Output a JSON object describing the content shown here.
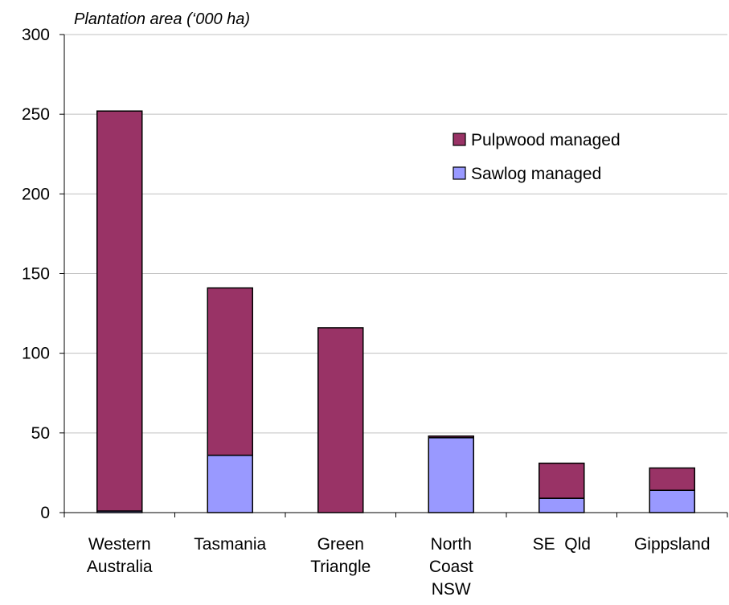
{
  "chart_data": {
    "type": "bar",
    "stacked": true,
    "title": "",
    "xlabel": "",
    "ylabel": "Plantation area (‘000 ha)",
    "ylim": [
      0,
      300
    ],
    "yticks": [
      0,
      50,
      100,
      150,
      200,
      250,
      300
    ],
    "grid": true,
    "legend_position": "top-right",
    "categories": [
      [
        "Western",
        "Australia"
      ],
      [
        "Tasmania"
      ],
      [
        "Green",
        "Triangle"
      ],
      [
        "North",
        "Coast",
        "NSW"
      ],
      [
        "SE  Qld"
      ],
      [
        "Gippsland"
      ]
    ],
    "series": [
      {
        "name": "Sawlog managed",
        "color": "#9999ff",
        "values": [
          1,
          36,
          0,
          47,
          9,
          14
        ]
      },
      {
        "name": "Pulpwood managed",
        "color": "#993366",
        "values": [
          251,
          105,
          116,
          1,
          22,
          14
        ]
      }
    ],
    "legend_order": [
      "Pulpwood managed",
      "Sawlog managed"
    ]
  }
}
